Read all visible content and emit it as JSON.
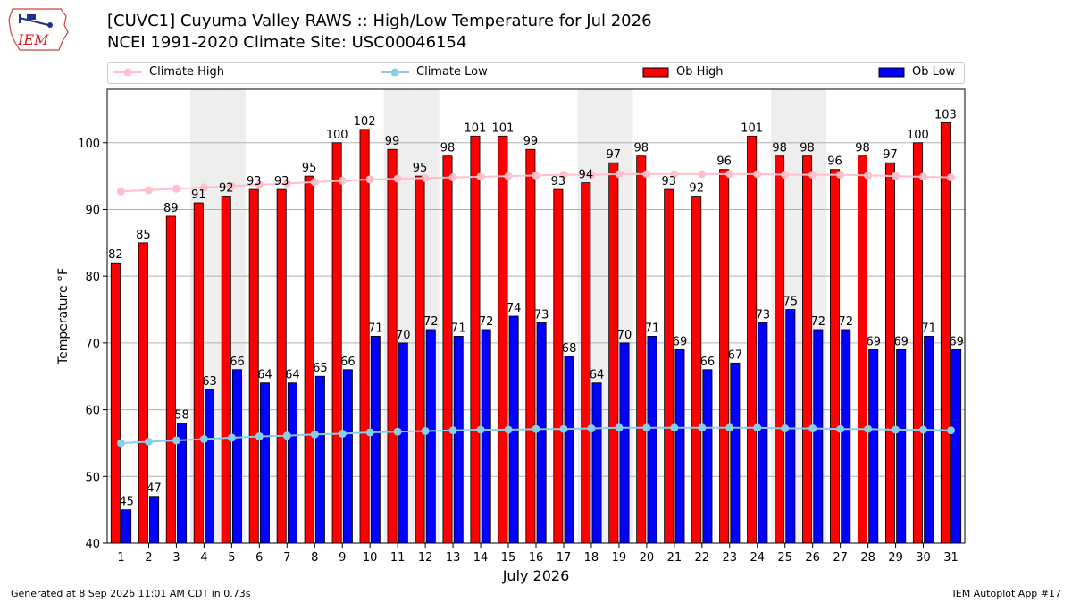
{
  "header": {
    "title_line1": "[CUVC1] Cuyuma Valley RAWS :: High/Low Temperature for Jul 2026",
    "title_line2": "NCEI 1991-2020 Climate Site: USC00046154",
    "logo_text": "IEM"
  },
  "footer": {
    "generated": "Generated at 8 Sep 2026 11:01 AM CDT in 0.73s",
    "app": "IEM Autoplot App #17"
  },
  "colors": {
    "ob_high": "#ff0000",
    "ob_low": "#0000ff",
    "climate_high": "#ffc0cb",
    "climate_low": "#87ceeb",
    "weekend_shade": "#eeeeee"
  },
  "chart_data": {
    "type": "bar",
    "xlabel": "July 2026",
    "ylabel": "Temperature °F",
    "ylim": [
      40,
      108
    ],
    "yticks": [
      40,
      50,
      60,
      70,
      80,
      90,
      100
    ],
    "grid": true,
    "legend_position": "top",
    "categories": [
      "1",
      "2",
      "3",
      "4",
      "5",
      "6",
      "7",
      "8",
      "9",
      "10",
      "11",
      "12",
      "13",
      "14",
      "15",
      "16",
      "17",
      "18",
      "19",
      "20",
      "21",
      "22",
      "23",
      "24",
      "25",
      "26",
      "27",
      "28",
      "29",
      "30",
      "31"
    ],
    "shaded_days": [
      4,
      5,
      11,
      12,
      18,
      19,
      25,
      26
    ],
    "series": [
      {
        "name": "Ob High",
        "kind": "bar",
        "values": [
          82,
          85,
          89,
          91,
          92,
          93,
          93,
          95,
          100,
          102,
          99,
          95,
          98,
          101,
          101,
          99,
          93,
          94,
          97,
          98,
          93,
          92,
          96,
          101,
          98,
          98,
          96,
          98,
          97,
          100,
          103
        ]
      },
      {
        "name": "Ob Low",
        "kind": "bar",
        "values": [
          45,
          47,
          58,
          63,
          66,
          64,
          64,
          65,
          66,
          71,
          70,
          72,
          71,
          72,
          74,
          73,
          68,
          64,
          70,
          71,
          69,
          66,
          67,
          73,
          75,
          72,
          72,
          69,
          69,
          71,
          69
        ]
      },
      {
        "name": "Climate High",
        "kind": "line",
        "values": [
          92.7,
          92.9,
          93.1,
          93.3,
          93.5,
          93.7,
          93.9,
          94.1,
          94.3,
          94.5,
          94.6,
          94.7,
          94.8,
          94.9,
          95.0,
          95.1,
          95.2,
          95.2,
          95.3,
          95.3,
          95.3,
          95.3,
          95.3,
          95.3,
          95.2,
          95.2,
          95.2,
          95.1,
          95.0,
          94.9,
          94.8
        ]
      },
      {
        "name": "Climate Low",
        "kind": "line",
        "values": [
          55.0,
          55.2,
          55.4,
          55.6,
          55.8,
          56.0,
          56.1,
          56.3,
          56.4,
          56.6,
          56.7,
          56.8,
          56.9,
          57.0,
          57.0,
          57.1,
          57.1,
          57.2,
          57.3,
          57.3,
          57.3,
          57.3,
          57.3,
          57.3,
          57.2,
          57.2,
          57.1,
          57.1,
          57.0,
          57.0,
          56.9
        ]
      }
    ]
  }
}
